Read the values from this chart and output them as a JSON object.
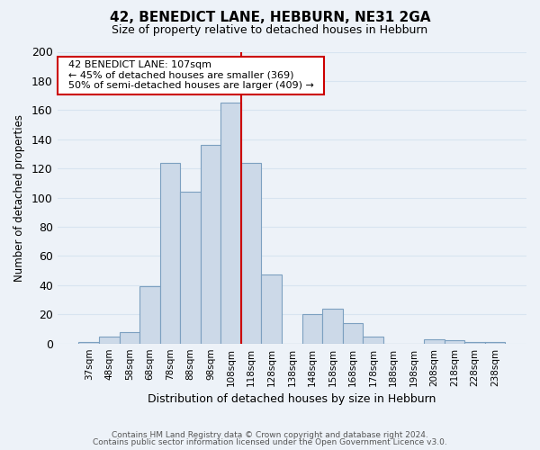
{
  "title": "42, BENEDICT LANE, HEBBURN, NE31 2GA",
  "subtitle": "Size of property relative to detached houses in Hebburn",
  "xlabel": "Distribution of detached houses by size in Hebburn",
  "ylabel": "Number of detached properties",
  "footnote1": "Contains HM Land Registry data © Crown copyright and database right 2024.",
  "footnote2": "Contains public sector information licensed under the Open Government Licence v3.0.",
  "bin_labels": [
    "37sqm",
    "48sqm",
    "58sqm",
    "68sqm",
    "78sqm",
    "88sqm",
    "98sqm",
    "108sqm",
    "118sqm",
    "128sqm",
    "138sqm",
    "148sqm",
    "158sqm",
    "168sqm",
    "178sqm",
    "188sqm",
    "198sqm",
    "208sqm",
    "218sqm",
    "228sqm",
    "238sqm"
  ],
  "bar_heights": [
    1,
    5,
    8,
    39,
    124,
    104,
    136,
    165,
    124,
    47,
    0,
    20,
    24,
    14,
    5,
    0,
    0,
    3,
    2,
    1,
    1
  ],
  "bar_color": "#ccd9e8",
  "bar_edge_color": "#7ca0c0",
  "vline_color": "#cc0000",
  "vline_index": 7,
  "ylim": [
    0,
    200
  ],
  "yticks": [
    0,
    20,
    40,
    60,
    80,
    100,
    120,
    140,
    160,
    180,
    200
  ],
  "annotation_title": "42 BENEDICT LANE: 107sqm",
  "annotation_line1": "← 45% of detached houses are smaller (369)",
  "annotation_line2": "50% of semi-detached houses are larger (409) →",
  "annotation_box_color": "#ffffff",
  "annotation_box_edge": "#cc0000",
  "grid_color": "#d8e4f0",
  "background_color": "#edf2f8"
}
